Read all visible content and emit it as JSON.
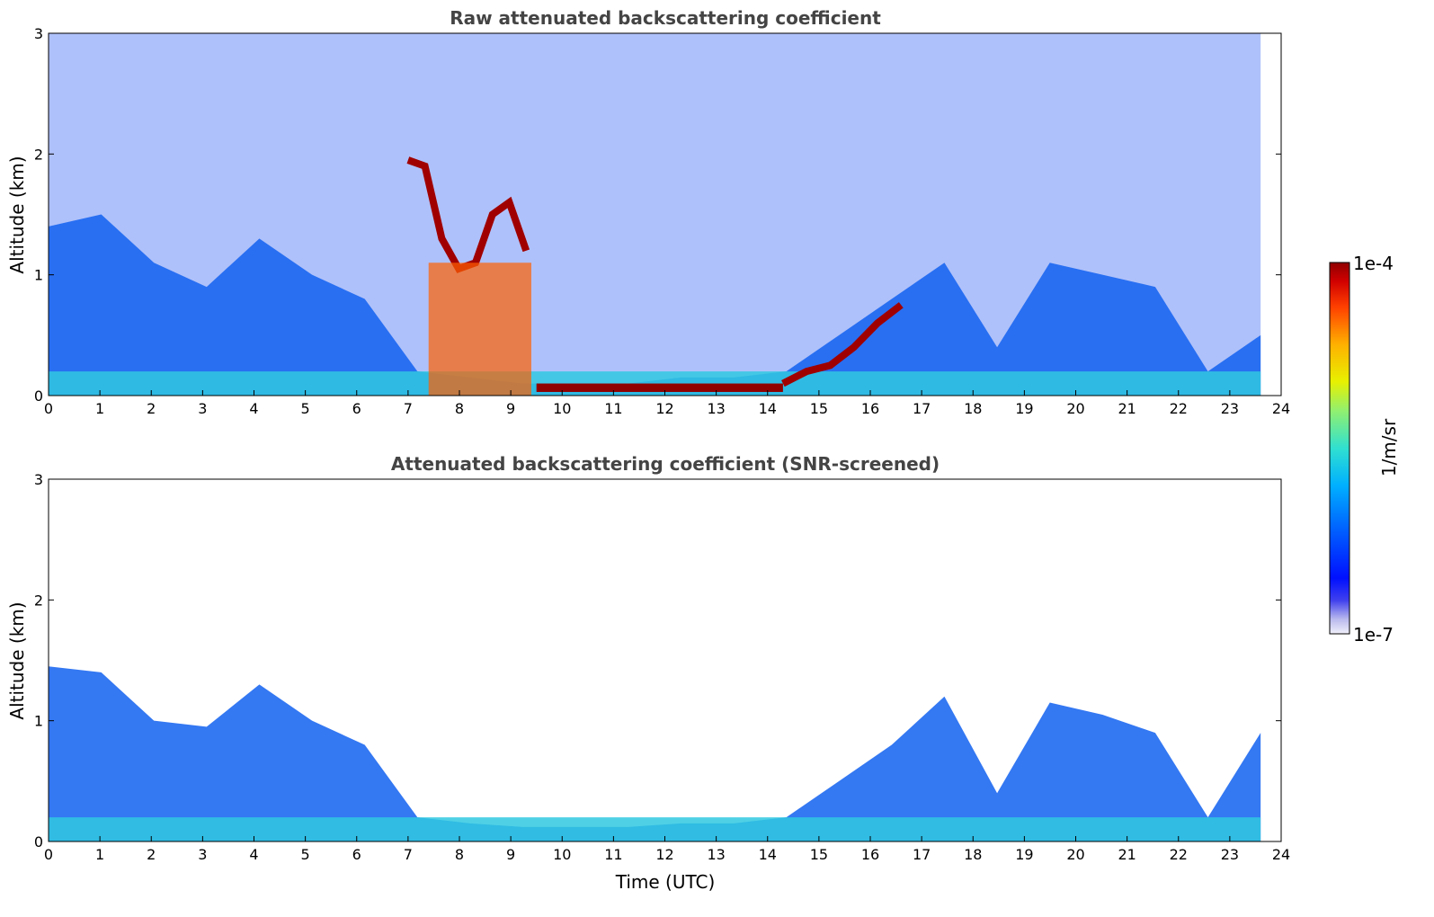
{
  "chart_data": [
    {
      "type": "heatmap",
      "title": "Raw attenuated backscattering coefficient",
      "xlabel": "",
      "ylabel": "Altitude (km)",
      "xlim": [
        0,
        24
      ],
      "ylim": [
        0,
        3
      ],
      "x_ticks": [
        "0",
        "1",
        "2",
        "3",
        "4",
        "5",
        "6",
        "7",
        "8",
        "9",
        "10",
        "11",
        "12",
        "13",
        "14",
        "15",
        "16",
        "17",
        "18",
        "19",
        "20",
        "21",
        "22",
        "23",
        "24"
      ],
      "y_ticks": [
        "0",
        "1",
        "2",
        "3"
      ],
      "data_end_time": 23.6,
      "features": [
        {
          "name": "boundary layer aerosol",
          "t_start": 0,
          "t_end": 23.6,
          "alt_top_km": [
            1.4,
            1.5,
            1.1,
            0.9,
            1.3,
            1.0,
            0.8,
            0.2,
            0.15,
            0.1,
            0.1,
            0.1,
            0.15,
            0.15,
            0.2,
            0.5,
            0.8,
            1.1,
            0.4,
            1.1,
            1.0,
            0.9,
            0.2,
            0.5
          ]
        },
        {
          "name": "cloud layer",
          "t_start": 7.0,
          "t_end": 9.3,
          "alt_km": [
            1.95,
            1.9,
            1.3,
            1.05,
            1.1,
            1.5,
            1.6,
            1.2
          ]
        },
        {
          "name": "low cloud",
          "t_start": 9.5,
          "t_end": 14.3,
          "alt_km": 0.07
        },
        {
          "name": "rising cloud",
          "t_start": 14.3,
          "t_end": 16.6,
          "alt_km": [
            0.1,
            0.2,
            0.25,
            0.4,
            0.6,
            0.75
          ]
        },
        {
          "name": "precipitation",
          "t_start": 7.4,
          "t_end": 9.4
        }
      ]
    },
    {
      "type": "heatmap",
      "title": "Attenuated backscattering coefficient (SNR-screened)",
      "xlabel": "Time (UTC)",
      "ylabel": "Altitude (km)",
      "xlim": [
        0,
        24
      ],
      "ylim": [
        0,
        3
      ],
      "x_ticks": [
        "0",
        "1",
        "2",
        "3",
        "4",
        "5",
        "6",
        "7",
        "8",
        "9",
        "10",
        "11",
        "12",
        "13",
        "14",
        "15",
        "16",
        "17",
        "18",
        "19",
        "20",
        "21",
        "22",
        "23",
        "24"
      ],
      "y_ticks": [
        "0",
        "1",
        "2",
        "3"
      ],
      "data_end_time": 23.6,
      "features": [
        {
          "name": "boundary layer aerosol",
          "t_start": 0,
          "t_end": 23.6,
          "alt_top_km": [
            1.45,
            1.4,
            1.0,
            0.95,
            1.3,
            1.0,
            0.8,
            0.2,
            0.15,
            0.12,
            0.12,
            0.12,
            0.15,
            0.15,
            0.2,
            0.5,
            0.8,
            1.2,
            0.4,
            1.15,
            1.05,
            0.9,
            0.2,
            0.9
          ]
        }
      ]
    }
  ],
  "colorbar": {
    "label": "1/m/sr",
    "min_label": "1e-7",
    "max_label": "1e-4",
    "colors": [
      "#e8e8f8",
      "#b8b8ee",
      "#7878e8",
      "#2020f0",
      "#0030ff",
      "#0070ff",
      "#00a8ff",
      "#20d8e8",
      "#60f0a0",
      "#b0f050",
      "#f0f000",
      "#ffb000",
      "#ff6000",
      "#e81000",
      "#a00000"
    ]
  }
}
